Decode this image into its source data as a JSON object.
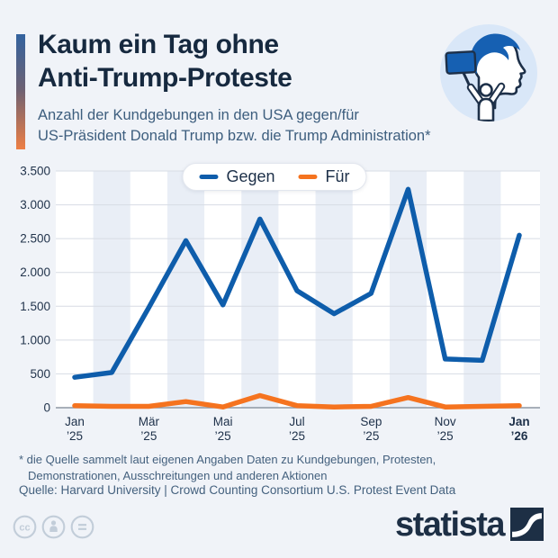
{
  "header": {
    "title_lines": [
      "Kaum ein Tag ohne",
      "Anti-Trump-Proteste"
    ],
    "subtitle_lines": [
      "Anzahl der Kundgebungen in den USA gegen/für",
      "US-Präsident Donald Trump bzw. die Trump Administration*"
    ],
    "icon": "protester-with-sign-in-front-of-trump-profile"
  },
  "chart_data": {
    "type": "line",
    "x": [
      "Jan ’25",
      "Feb ’25",
      "Mär ’25",
      "Apr ’25",
      "Mai ’25",
      "Jun ’25",
      "Jul ’25",
      "Aug ’25",
      "Sep ’25",
      "Okt ’25",
      "Nov ’25",
      "Dez ’25",
      "Jan ’26"
    ],
    "series": [
      {
        "name": "Gegen",
        "color": "#0e5dab",
        "values": [
          450,
          520,
          1480,
          2470,
          1520,
          2790,
          1730,
          1390,
          1690,
          3230,
          720,
          700,
          2550
        ]
      },
      {
        "name": "Für",
        "color": "#f5731f",
        "values": [
          30,
          20,
          20,
          90,
          10,
          180,
          30,
          10,
          20,
          150,
          10,
          20,
          30
        ]
      }
    ],
    "ylim": [
      0,
      3500
    ],
    "yticks": [
      {
        "value": 0,
        "label": "0"
      },
      {
        "value": 500,
        "label": "500"
      },
      {
        "value": 1000,
        "label": "1.000"
      },
      {
        "value": 1500,
        "label": "1.500"
      },
      {
        "value": 2000,
        "label": "2.000"
      },
      {
        "value": 2500,
        "label": "2.500"
      },
      {
        "value": 3000,
        "label": "3.000"
      },
      {
        "value": 3500,
        "label": "3.500"
      }
    ],
    "xticks": [
      {
        "index": 0,
        "month": "Jan",
        "year": "’25",
        "bold": false
      },
      {
        "index": 2,
        "month": "Mär",
        "year": "’25",
        "bold": false
      },
      {
        "index": 4,
        "month": "Mai",
        "year": "’25",
        "bold": false
      },
      {
        "index": 6,
        "month": "Jul",
        "year": "’25",
        "bold": false
      },
      {
        "index": 8,
        "month": "Sep",
        "year": "’25",
        "bold": false
      },
      {
        "index": 10,
        "month": "Nov",
        "year": "’25",
        "bold": false
      },
      {
        "index": 12,
        "month": "Jan",
        "year": "’26",
        "bold": true
      }
    ],
    "legend": [
      {
        "label": "Gegen",
        "color": "#0e5dab"
      },
      {
        "label": "Für",
        "color": "#f5731f"
      }
    ],
    "legend_position": "top-center",
    "grid": "horizontal",
    "background_stripes": "alternating-monthly"
  },
  "footer": {
    "footnote_line1": "* die Quelle sammelt laut eigenen Angaben Daten zu Kundgebungen, Protesten,",
    "footnote_line2": "Demonstrationen, Ausschreitungen und anderen Aktionen",
    "source": "Quelle: Harvard University | Crowd Counting Consortium U.S. Protest Event Data",
    "brand": "statista",
    "license_icons": [
      "cc-icon",
      "attribution-icon",
      "no-derivatives-icon"
    ]
  },
  "colors": {
    "page_bg": "#f0f3f8",
    "plot_bg": "#ffffff",
    "stripe": "#e9eef6",
    "gridline": "#d7dce4",
    "axis_line": "#8d97a3",
    "tick_label": "#22344c",
    "title": "#16293f",
    "subtitle": "#3d5e7e",
    "footnote": "#44617e",
    "brand_navy": "#1d2f45",
    "cc_gray": "#c2cdd9",
    "icon_circle": "#d9e7f8",
    "icon_blue": "#1660b2",
    "icon_outline": "#1d3049"
  }
}
